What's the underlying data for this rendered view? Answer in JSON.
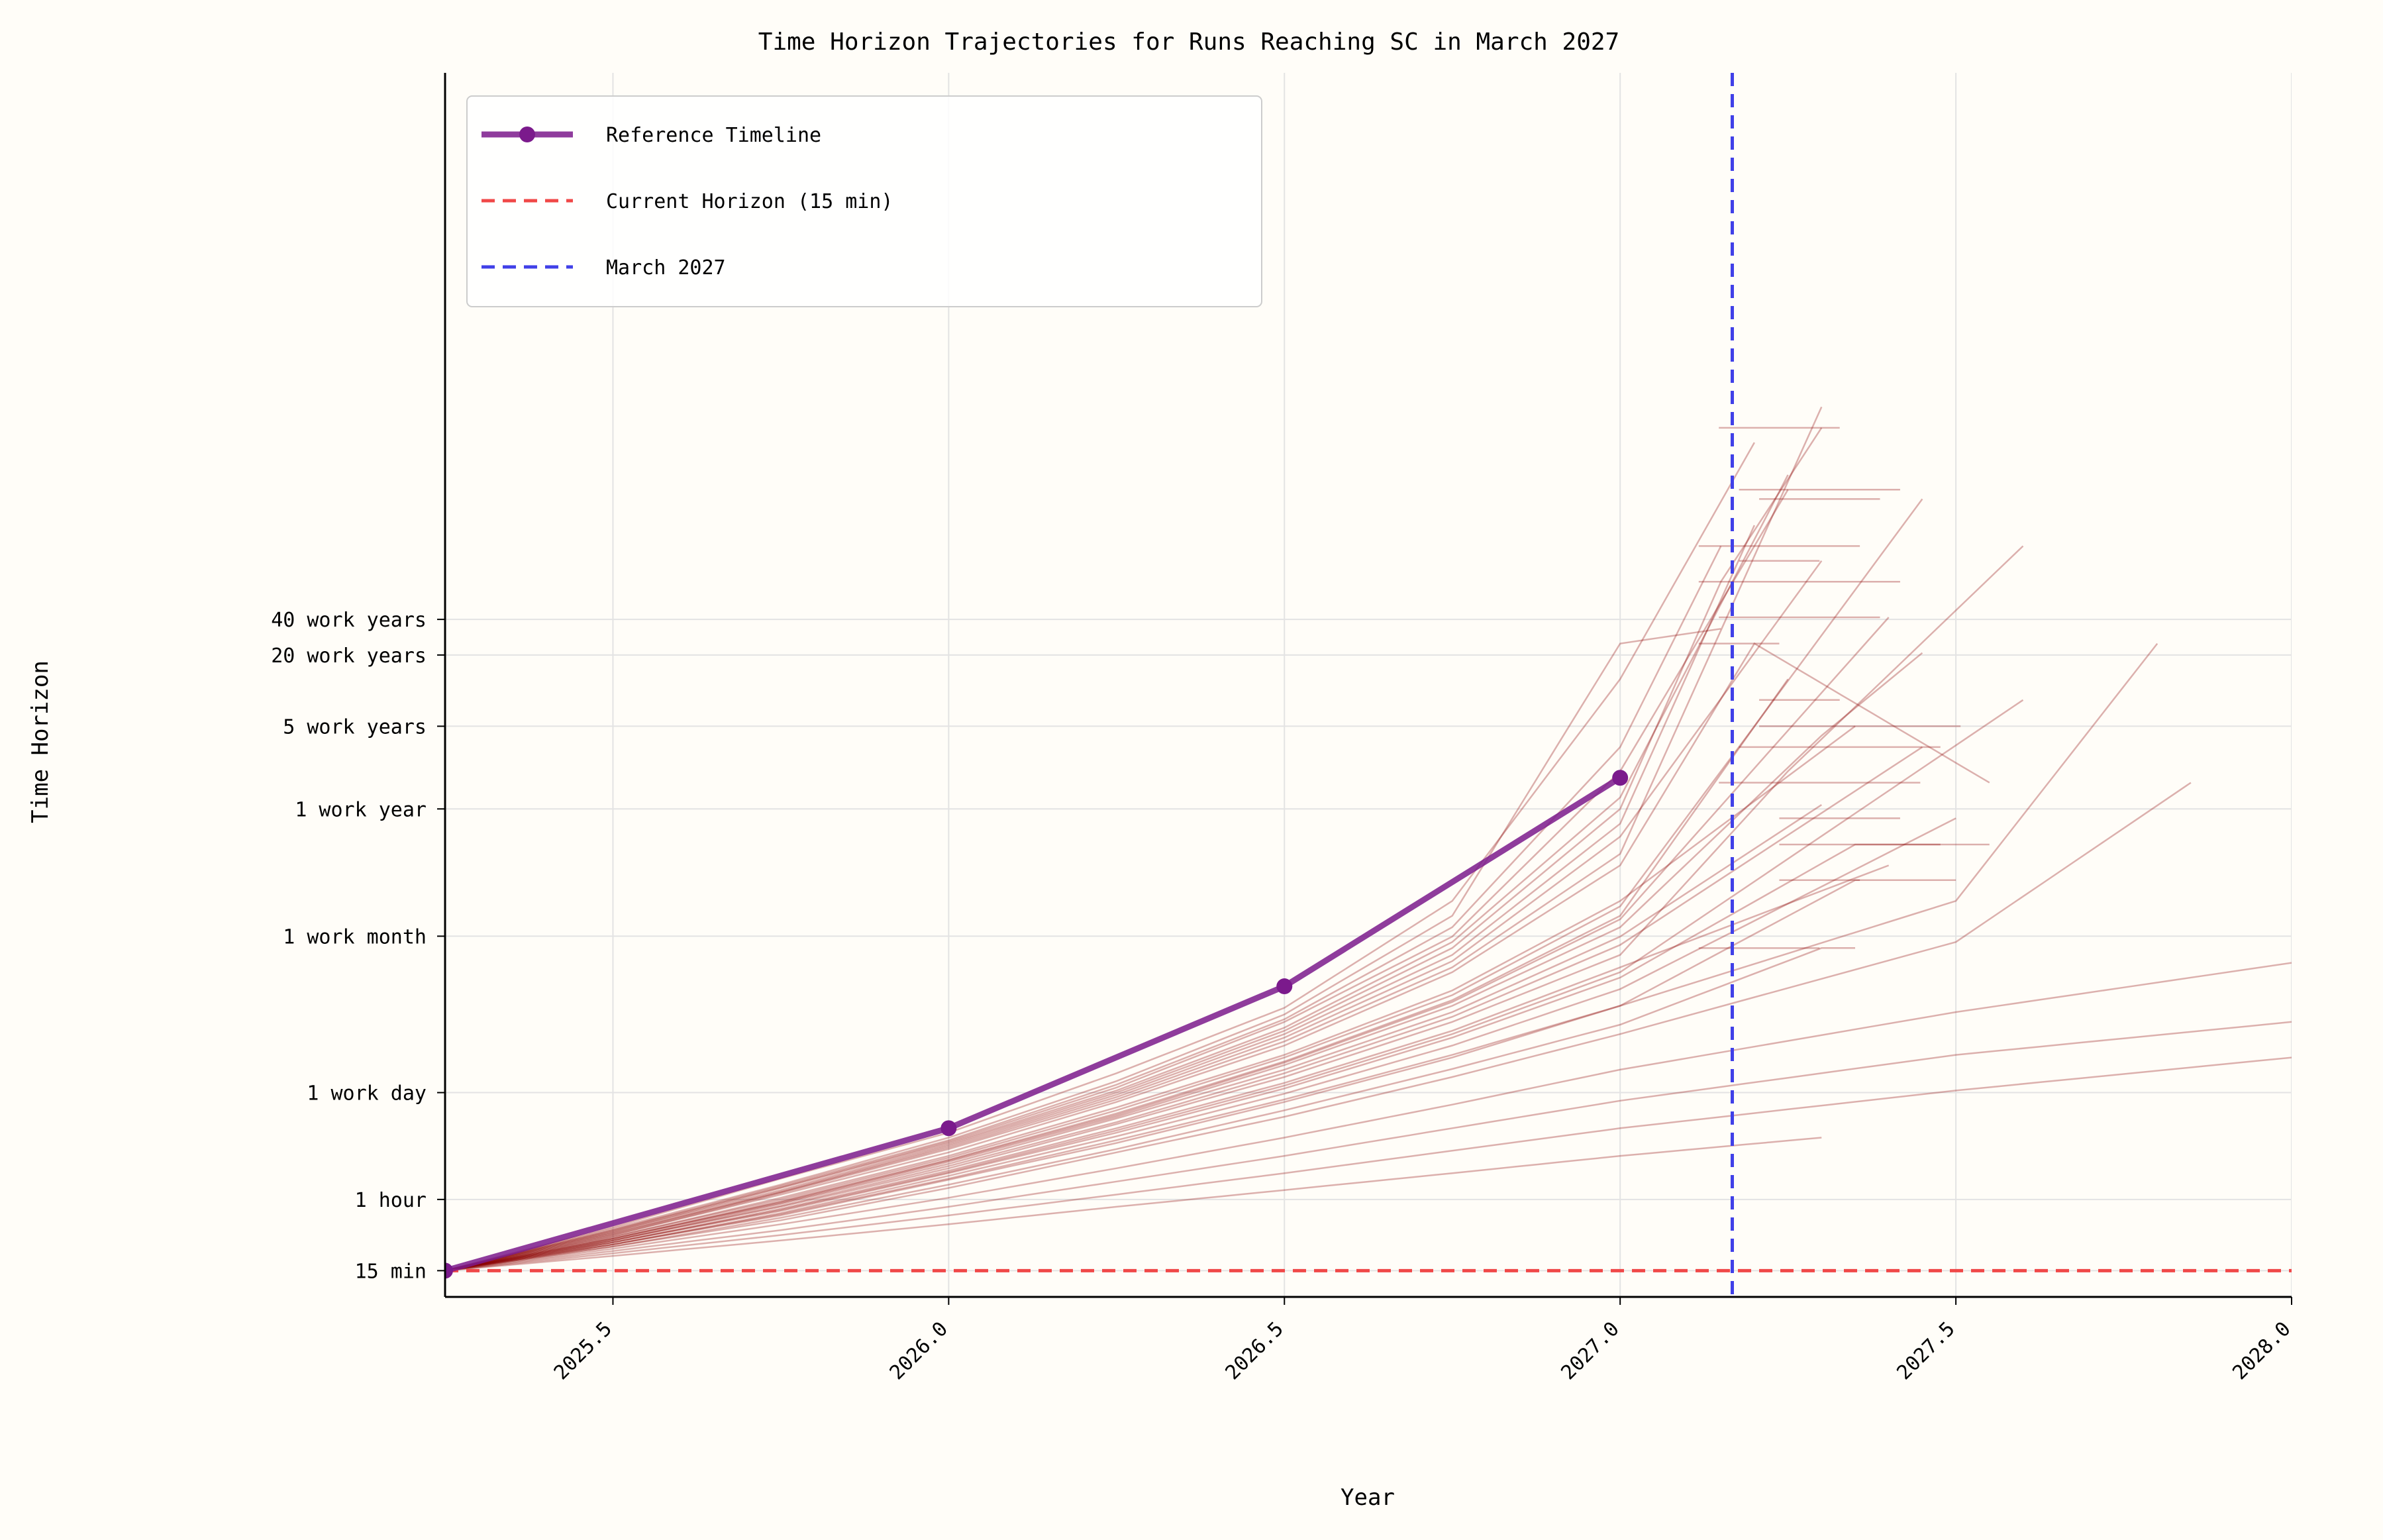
{
  "chart_data": {
    "type": "line",
    "title": "Time Horizon Trajectories for Runs Reaching SC in March 2027",
    "xlabel": "Year",
    "ylabel": "Time Horizon",
    "xlim": [
      2025.25,
      2028.0
    ],
    "x_ticks": [
      2025.5,
      2026.0,
      2026.5,
      2027.0,
      2027.5,
      2028.0
    ],
    "x_tick_labels": [
      "2025.5",
      "2026.0",
      "2026.5",
      "2027.0",
      "2027.5",
      "2028.0"
    ],
    "y_scale": "log",
    "y_unit": "minutes",
    "ylim_minutes": [
      9,
      200000000000
    ],
    "y_ticks": [
      {
        "label": "15 min",
        "minutes": 15
      },
      {
        "label": "1 hour",
        "minutes": 60
      },
      {
        "label": "1 work day",
        "minutes": 480
      },
      {
        "label": "1 work month",
        "minutes": 10080
      },
      {
        "label": "1 work year",
        "minutes": 120000
      },
      {
        "label": "5 work years",
        "minutes": 600000
      },
      {
        "label": "20 work years",
        "minutes": 2400000
      },
      {
        "label": "40 work years",
        "minutes": 4800000
      }
    ],
    "grid": true,
    "legend_position": "upper-left",
    "legend": [
      {
        "label": "Reference Timeline",
        "style": "solid-marker",
        "color": "#7b1a8c"
      },
      {
        "label": "Current Horizon (15 min)",
        "style": "dashed",
        "color": "#f04848"
      },
      {
        "label": "March 2027",
        "style": "dashed",
        "color": "#4040e8"
      }
    ],
    "reference_timeline": {
      "name": "Reference Timeline",
      "color": "#7b1a8c",
      "points": [
        {
          "x": 2025.25,
          "minutes": 15
        },
        {
          "x": 2026.0,
          "minutes": 240
        },
        {
          "x": 2026.5,
          "minutes": 3800
        },
        {
          "x": 2027.0,
          "minutes": 220000
        }
      ]
    },
    "current_horizon_line": {
      "label": "Current Horizon (15 min)",
      "minutes": 15,
      "color": "#f04848"
    },
    "march_2027_line": {
      "label": "March 2027",
      "x": 2027.167,
      "color": "#4040e8"
    },
    "trajectories_color": "#8b0000",
    "trajectories": [
      {
        "x": [
          2025.25,
          2025.5,
          2025.75,
          2026.0,
          2026.25,
          2026.5,
          2026.75,
          2027.0,
          2027.2
        ],
        "minutes": [
          15,
          35,
          90,
          220,
          700,
          2500,
          20000,
          1500000,
          150000000
        ]
      },
      {
        "x": [
          2025.25,
          2025.5,
          2025.75,
          2026.0,
          2026.25,
          2026.5,
          2026.75,
          2027.0,
          2027.15
        ],
        "minutes": [
          15,
          34,
          80,
          200,
          600,
          2200,
          15000,
          3000000,
          4000000
        ]
      },
      {
        "x": [
          2025.25,
          2025.5,
          2025.75,
          2026.0,
          2026.25,
          2026.5,
          2026.75,
          2027.0,
          2027.25
        ],
        "minutes": [
          15,
          32,
          75,
          180,
          500,
          1700,
          9000,
          150000,
          80000000
        ]
      },
      {
        "x": [
          2025.25,
          2025.5,
          2025.75,
          2026.0,
          2026.25,
          2026.5,
          2026.75,
          2027.0,
          2027.3
        ],
        "minutes": [
          15,
          30,
          68,
          160,
          420,
          1300,
          5500,
          50000,
          300000000
        ]
      },
      {
        "x": [
          2025.25,
          2025.5,
          2025.75,
          2026.0,
          2026.25,
          2026.5,
          2026.75,
          2027.0,
          2027.35
        ],
        "minutes": [
          15,
          29,
          62,
          140,
          360,
          1000,
          3500,
          20000,
          600000
        ]
      },
      {
        "x": [
          2025.25,
          2025.5,
          2025.75,
          2026.0,
          2026.25,
          2026.5,
          2026.75,
          2027.0,
          2027.2
        ],
        "minutes": [
          15,
          31,
          70,
          170,
          460,
          1500,
          7000,
          90000,
          30000000
        ]
      },
      {
        "x": [
          2025.25,
          2025.5,
          2025.75,
          2026.0,
          2026.25,
          2026.5,
          2026.75,
          2027.0,
          2027.3
        ],
        "minutes": [
          15,
          27,
          55,
          120,
          290,
          750,
          2300,
          10000,
          130000
        ]
      },
      {
        "x": [
          2025.25,
          2025.5,
          2025.75,
          2026.0,
          2026.25,
          2026.5,
          2026.75,
          2027.0,
          2027.25
        ],
        "minutes": [
          15,
          28,
          58,
          130,
          320,
          880,
          2900,
          15000,
          1500000
        ]
      },
      {
        "x": [
          2025.25,
          2025.5,
          2025.75,
          2026.0,
          2026.25,
          2026.5,
          2026.75,
          2027.0,
          2027.4
        ],
        "minutes": [
          15,
          26,
          50,
          105,
          240,
          580,
          1600,
          5500,
          40000
        ]
      },
      {
        "x": [
          2025.25,
          2025.5,
          2025.75,
          2026.0,
          2026.25,
          2026.5,
          2026.75,
          2027.0,
          2027.15
        ],
        "minutes": [
          15,
          33,
          78,
          190,
          560,
          2000,
          12000,
          400000,
          20000000
        ]
      },
      {
        "x": [
          2025.25,
          2025.5,
          2025.75,
          2026.0,
          2026.25,
          2026.5,
          2026.75,
          2027.0,
          2027.5,
          2027.8
        ],
        "minutes": [
          15,
          25,
          45,
          90,
          190,
          420,
          1000,
          2600,
          20000,
          3000000
        ]
      },
      {
        "x": [
          2025.25,
          2025.5,
          2025.75,
          2026.0,
          2026.25,
          2026.5,
          2026.75,
          2027.0,
          2027.5,
          2027.85
        ],
        "minutes": [
          15,
          24,
          40,
          75,
          150,
          300,
          650,
          1500,
          9000,
          200000
        ]
      },
      {
        "x": [
          2025.25,
          2025.5,
          2025.75,
          2026.0,
          2026.25,
          2026.5,
          2026.75,
          2027.0,
          2027.5,
          2028.0
        ],
        "minutes": [
          15,
          23,
          37,
          62,
          110,
          200,
          380,
          750,
          2300,
          6000
        ]
      },
      {
        "x": [
          2025.25,
          2025.5,
          2025.75,
          2026.0,
          2026.25,
          2026.5,
          2026.75,
          2027.0,
          2027.5,
          2028.0
        ],
        "minutes": [
          15,
          22,
          33,
          52,
          85,
          140,
          240,
          410,
          1000,
          1900
        ]
      },
      {
        "x": [
          2025.25,
          2025.5,
          2025.75,
          2026.0,
          2026.25,
          2026.5,
          2026.75,
          2027.0,
          2027.5,
          2028.0
        ],
        "minutes": [
          15,
          21,
          30,
          44,
          66,
          100,
          155,
          240,
          500,
          950
        ]
      },
      {
        "x": [
          2025.25,
          2025.5,
          2025.75,
          2026.0,
          2026.25,
          2026.5,
          2026.75,
          2027.0,
          2027.3
        ],
        "minutes": [
          15,
          20,
          27,
          37,
          52,
          72,
          100,
          140,
          200
        ]
      },
      {
        "x": [
          2025.25,
          2025.5,
          2025.75,
          2026.0,
          2026.25,
          2026.5,
          2026.75,
          2027.0,
          2027.3,
          2027.45
        ],
        "minutes": [
          15,
          28,
          56,
          125,
          300,
          820,
          2600,
          12000,
          500000,
          2500000
        ]
      },
      {
        "x": [
          2025.25,
          2025.5,
          2025.75,
          2026.0,
          2026.25,
          2026.5,
          2026.75,
          2027.0,
          2027.35,
          2027.55
        ],
        "minutes": [
          15,
          26,
          48,
          100,
          220,
          520,
          1400,
          4500,
          60000,
          60000
        ]
      },
      {
        "x": [
          2025.25,
          2025.5,
          2025.75,
          2026.0,
          2026.25,
          2026.5,
          2026.75,
          2027.0,
          2027.25,
          2027.6
        ],
        "minutes": [
          15,
          27,
          52,
          110,
          260,
          650,
          1900,
          7000,
          250000,
          20000000
        ]
      },
      {
        "x": [
          2025.25,
          2025.5,
          2025.75,
          2026.0,
          2026.25,
          2026.5,
          2026.75,
          2027.0,
          2027.2,
          2027.55
        ],
        "minutes": [
          15,
          30,
          66,
          150,
          400,
          1200,
          5000,
          40000,
          3000000,
          200000
        ]
      },
      {
        "x": [
          2025.25,
          2025.5,
          2025.75,
          2026.0,
          2026.25,
          2026.5,
          2026.75,
          2027.0,
          2027.15,
          2027.3
        ],
        "minutes": [
          15,
          32,
          72,
          175,
          480,
          1600,
          8000,
          120000,
          10000000,
          200000000
        ]
      },
      {
        "x": [
          2025.25,
          2025.5,
          2025.75,
          2026.0,
          2026.25,
          2026.5,
          2026.75,
          2027.0,
          2027.2,
          2027.45
        ],
        "minutes": [
          15,
          29,
          60,
          135,
          340,
          950,
          3200,
          18000,
          600000,
          50000000
        ]
      },
      {
        "x": [
          2025.25,
          2025.5,
          2025.75,
          2026.0,
          2026.25,
          2026.5,
          2026.75,
          2027.0,
          2027.35,
          2027.5
        ],
        "minutes": [
          15,
          25,
          44,
          88,
          180,
          400,
          950,
          2600,
          30000,
          30000
        ]
      },
      {
        "x": [
          2025.25,
          2025.5,
          2025.75,
          2026.0,
          2026.25,
          2026.5,
          2026.75,
          2027.0,
          2027.3,
          2027.35
        ],
        "minutes": [
          15,
          24,
          42,
          80,
          160,
          340,
          760,
          1800,
          8000,
          8000
        ]
      },
      {
        "x": [
          2025.25,
          2025.5,
          2025.75,
          2026.0,
          2026.25,
          2026.5,
          2026.75,
          2027.0,
          2027.25
        ],
        "minutes": [
          15,
          33,
          76,
          185,
          530,
          1900,
          10000,
          250000,
          60000000
        ]
      },
      {
        "x": [
          2025.25,
          2025.5,
          2025.75,
          2026.0,
          2026.25,
          2026.5,
          2026.75,
          2027.0,
          2027.3
        ],
        "minutes": [
          15,
          31,
          69,
          165,
          440,
          1400,
          6200,
          70000,
          15000000
        ]
      },
      {
        "x": [
          2025.25,
          2025.5,
          2025.75,
          2026.0,
          2026.25,
          2026.5,
          2026.75,
          2027.0,
          2027.4
        ],
        "minutes": [
          15,
          28,
          57,
          128,
          310,
          860,
          2800,
          14000,
          5000000
        ]
      },
      {
        "x": [
          2025.25,
          2025.5,
          2025.75,
          2026.0,
          2026.25,
          2026.5,
          2026.75,
          2027.0,
          2027.45
        ],
        "minutes": [
          15,
          27,
          53,
          115,
          270,
          700,
          2100,
          8500,
          400000
        ]
      },
      {
        "x": [
          2025.25,
          2025.5,
          2025.75,
          2026.0,
          2026.25,
          2026.5,
          2026.75,
          2027.0,
          2027.6
        ],
        "minutes": [
          15,
          26,
          49,
          102,
          230,
          550,
          1500,
          5000,
          1000000
        ]
      },
      {
        "x": [
          2025.25,
          2025.5,
          2025.75,
          2026.0,
          2026.25,
          2026.5,
          2026.75,
          2027.0,
          2027.5
        ],
        "minutes": [
          15,
          25,
          46,
          95,
          205,
          470,
          1200,
          3600,
          100000
        ]
      }
    ],
    "plateau_levels_minutes": [
      3000000,
      200000000,
      60000000,
      600000,
      30000,
      8000,
      5000000,
      400000,
      1000000,
      100000,
      20000000,
      200000,
      15000000,
      50000000,
      60000,
      10000000
    ]
  }
}
